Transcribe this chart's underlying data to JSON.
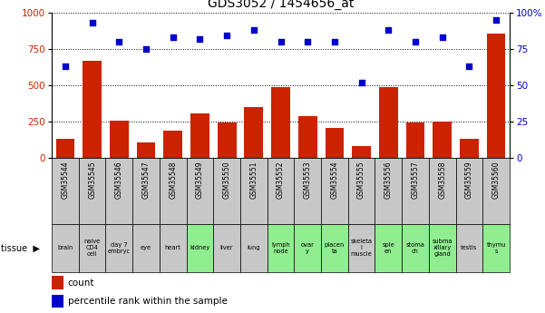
{
  "title": "GDS3052 / 1454656_at",
  "gsm_labels": [
    "GSM35544",
    "GSM35545",
    "GSM35546",
    "GSM35547",
    "GSM35548",
    "GSM35549",
    "GSM35550",
    "GSM35551",
    "GSM35552",
    "GSM35553",
    "GSM35554",
    "GSM35555",
    "GSM35556",
    "GSM35557",
    "GSM35558",
    "GSM35559",
    "GSM35560"
  ],
  "tissue_labels": [
    "brain",
    "naive\nCD4\ncell",
    "day 7\nembryc",
    "eye",
    "heart",
    "kidney",
    "liver",
    "lung",
    "lymph\nnode",
    "ovar\ny",
    "placen\nta",
    "skeleta\nl\nmuscle",
    "sple\nen",
    "stoma\nch",
    "subma\nxillary\ngland",
    "testis",
    "thymu\ns"
  ],
  "tissue_colors": [
    "#c8c8c8",
    "#c8c8c8",
    "#c8c8c8",
    "#c8c8c8",
    "#c8c8c8",
    "#90ee90",
    "#c8c8c8",
    "#c8c8c8",
    "#90ee90",
    "#90ee90",
    "#90ee90",
    "#c8c8c8",
    "#90ee90",
    "#90ee90",
    "#90ee90",
    "#c8c8c8",
    "#90ee90"
  ],
  "count_values": [
    130,
    670,
    260,
    110,
    190,
    305,
    245,
    350,
    490,
    290,
    205,
    85,
    490,
    245,
    250,
    130,
    855
  ],
  "percentile_values": [
    63,
    93,
    80,
    75,
    83,
    82,
    84,
    88,
    80,
    80,
    80,
    52,
    88,
    80,
    83,
    63,
    95
  ],
  "ylim_left": [
    0,
    1000
  ],
  "ylim_right": [
    0,
    100
  ],
  "yticks_left": [
    0,
    250,
    500,
    750,
    1000
  ],
  "yticks_right": [
    0,
    25,
    50,
    75,
    100
  ],
  "bar_color": "#cc2200",
  "dot_color": "#0000cc",
  "grid_color": "#000000",
  "bg_color": "#ffffff",
  "gsm_row_color": "#c8c8c8",
  "legend_count_label": "count",
  "legend_percentile_label": "percentile rank within the sample"
}
